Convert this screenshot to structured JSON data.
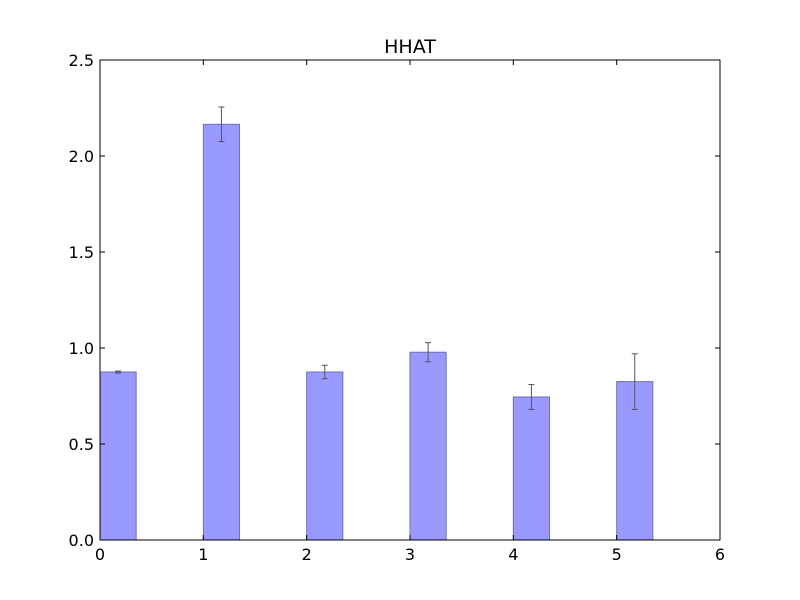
{
  "chart_data": {
    "type": "bar",
    "title": "HHAT",
    "xlabel": "",
    "ylabel": "",
    "x": [
      0,
      1,
      2,
      3,
      4,
      5
    ],
    "values": [
      0.875,
      2.165,
      0.875,
      0.978,
      0.745,
      0.825
    ],
    "errors": [
      0.005,
      0.09,
      0.035,
      0.05,
      0.065,
      0.145
    ],
    "bar_offset": 0,
    "bar_width": 0.35,
    "xlim": [
      0,
      6
    ],
    "ylim": [
      0,
      2.5
    ],
    "xticks": [
      0,
      1,
      2,
      3,
      4,
      5,
      6
    ],
    "xtick_labels": [
      "0",
      "1",
      "2",
      "3",
      "4",
      "5",
      "6"
    ],
    "yticks": [
      0.0,
      0.5,
      1.0,
      1.5,
      2.0,
      2.5
    ],
    "ytick_labels": [
      "0.0",
      "0.5",
      "1.0",
      "1.5",
      "2.0",
      "2.5"
    ],
    "grid": false,
    "legend": "none",
    "colors": {
      "bar_fill": "#9999ff",
      "bar_edge": "#7070b8",
      "error_bar": "#555555",
      "axes": "#000000"
    }
  }
}
